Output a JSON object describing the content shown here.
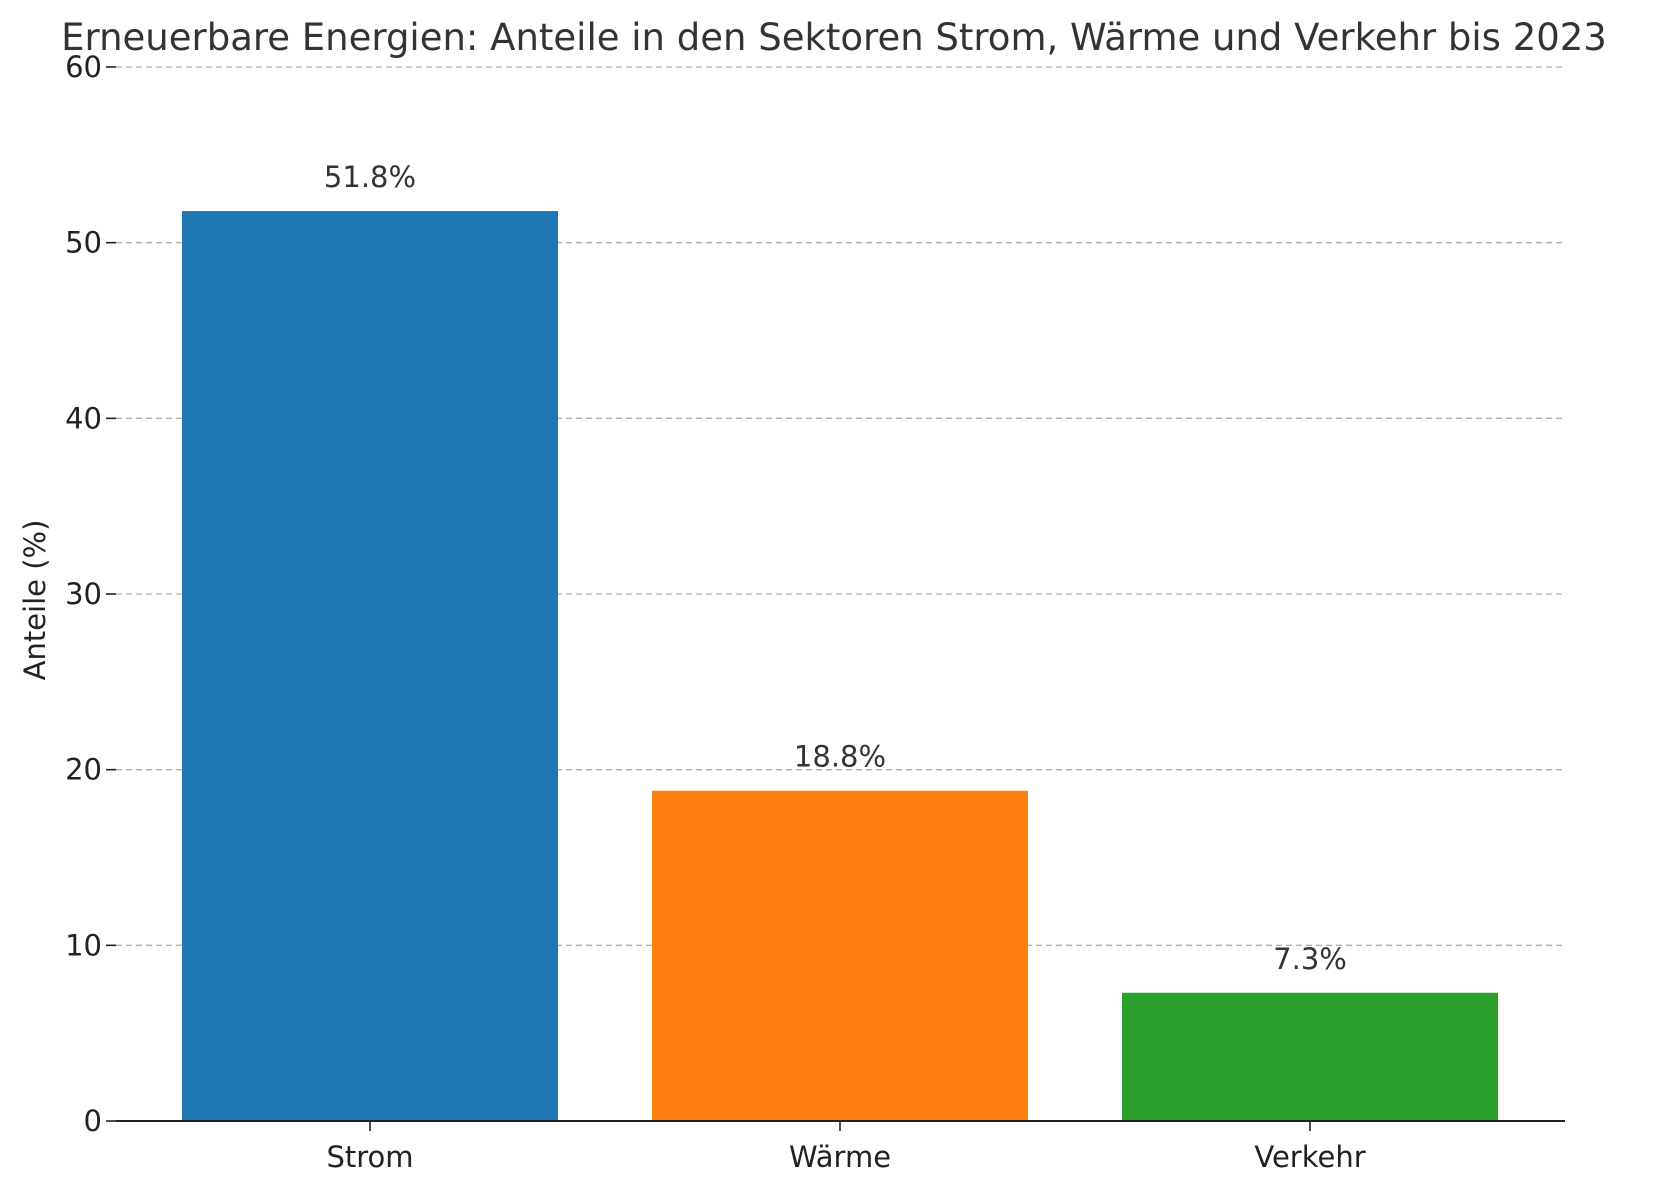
{
  "chart_data": {
    "type": "bar",
    "title": "Erneuerbare Energien: Anteile in den Sektoren Strom, Wärme und Verkehr bis 2023",
    "xlabel": "",
    "ylabel": "Anteile (%)",
    "categories": [
      "Strom",
      "Wärme",
      "Verkehr"
    ],
    "values": [
      51.8,
      18.8,
      7.3
    ],
    "data_labels": [
      "51.8%",
      "18.8%",
      "7.3%"
    ],
    "colors": [
      "#1f77b4",
      "#ff7f0e",
      "#2ca02c"
    ],
    "ylim": [
      0,
      60
    ],
    "yticks": [
      0,
      10,
      20,
      30,
      40,
      50,
      60
    ],
    "grid": "y-dashed",
    "legend": "none"
  }
}
